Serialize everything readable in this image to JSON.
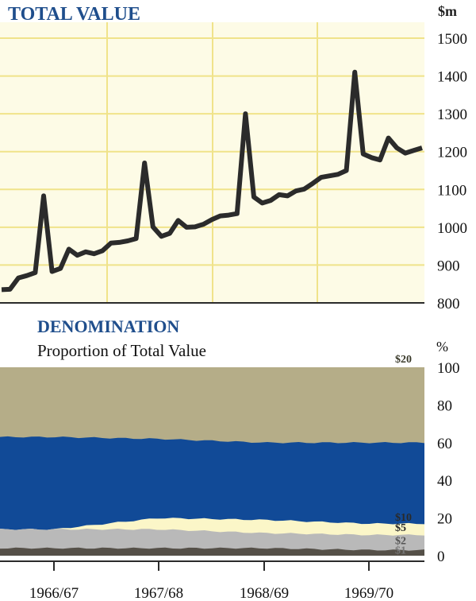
{
  "colors": {
    "panel_bg": "#fdfbe6",
    "grid": "#f0e38a",
    "line": "#2b2b2b",
    "title": "#1f4e8c",
    "twenty": "#b5ad88",
    "ten": "#114a97",
    "five": "#fbf6c8",
    "two": "#b9b9b9",
    "one": "#555048"
  },
  "chart_data": [
    {
      "type": "line",
      "title": "TOTAL VALUE",
      "ylabel": "$m",
      "ylim": [
        800,
        1500
      ],
      "yticks": [
        "1500",
        "1400",
        "1300",
        "1200",
        "1100",
        "1000",
        "900",
        "800"
      ],
      "x_periods": [
        "1966/67",
        "1967/68",
        "1968/69",
        "1969/70"
      ],
      "x": [
        0,
        1,
        2,
        3,
        4,
        5,
        6,
        7,
        8,
        9,
        10,
        11,
        12,
        13,
        14,
        15,
        16,
        17,
        18,
        19,
        20,
        21,
        22,
        23,
        24,
        25,
        26,
        27,
        28,
        29,
        30,
        31,
        32,
        33,
        34,
        35,
        36,
        37,
        38,
        39,
        40,
        41,
        42,
        43,
        44,
        45,
        46,
        47,
        48,
        49,
        50
      ],
      "values": [
        835,
        836,
        866,
        872,
        880,
        1083,
        883,
        891,
        942,
        926,
        935,
        930,
        938,
        958,
        960,
        964,
        970,
        1170,
        1001,
        976,
        984,
        1018,
        1000,
        1001,
        1008,
        1020,
        1030,
        1032,
        1036,
        1300,
        1080,
        1064,
        1071,
        1086,
        1083,
        1096,
        1101,
        1116,
        1132,
        1136,
        1140,
        1150,
        1410,
        1194,
        1184,
        1178,
        1236,
        1210,
        1196,
        1203,
        1210
      ]
    },
    {
      "type": "area",
      "title": "DENOMINATION",
      "subtitle": "Proportion of Total Value",
      "ylabel": "%",
      "ylim": [
        0,
        100
      ],
      "yticks": [
        "100",
        "80",
        "60",
        "40",
        "20",
        "0"
      ],
      "categories": [
        "1966/67",
        "1967/68",
        "1968/69",
        "1969/70"
      ],
      "series": [
        {
          "name": "$1",
          "values": [
            4,
            4,
            4,
            3
          ]
        },
        {
          "name": "$2",
          "values": [
            14,
            14,
            12,
            11
          ]
        },
        {
          "name": "$5",
          "values": [
            14,
            20,
            19,
            17
          ]
        },
        {
          "name": "$10",
          "values": [
            63,
            62,
            60,
            60
          ]
        },
        {
          "name": "$20",
          "values": [
            100,
            100,
            100,
            100
          ]
        }
      ],
      "stacked": "cumulative"
    }
  ]
}
